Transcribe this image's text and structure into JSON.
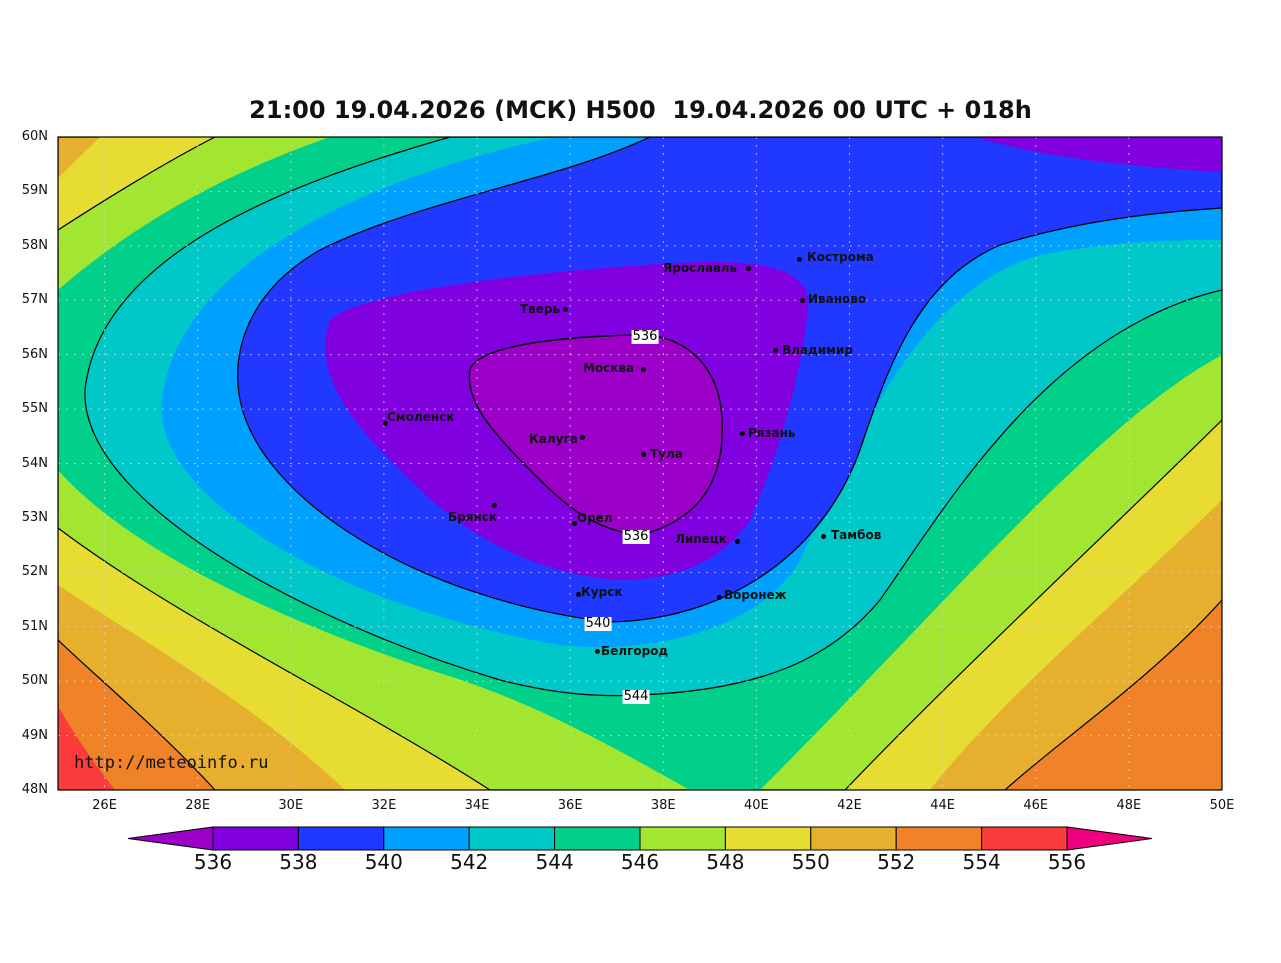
{
  "title": "21:00 19.04.2026 (МСК) H500  19.04.2026 00 UTC + 018h",
  "watermark": "http://meteoinfo.ru",
  "lat_labels": [
    "48N",
    "49N",
    "50N",
    "51N",
    "52N",
    "53N",
    "54N",
    "55N",
    "56N",
    "57N",
    "58N",
    "59N",
    "60N"
  ],
  "lon_labels": [
    "26E",
    "28E",
    "30E",
    "32E",
    "34E",
    "36E",
    "38E",
    "40E",
    "42E",
    "44E",
    "46E",
    "48E",
    "50E"
  ],
  "cities": [
    "Кострома",
    "Ярославль",
    "Иваново",
    "Тверь",
    "Владимир",
    "Москва",
    "Смоленск",
    "Калуга",
    "Рязань",
    "Тула",
    "Брянск",
    "Орел",
    "Липецк",
    "Тамбов",
    "Курск",
    "Воронеж",
    "Белгород"
  ],
  "contour_labels": [
    "536",
    "536",
    "540",
    "544"
  ],
  "colorbar": {
    "labels": [
      "536",
      "538",
      "540",
      "542",
      "544",
      "546",
      "548",
      "550",
      "552",
      "554",
      "556"
    ],
    "colors": {
      "below_536": "#9c00c8",
      "536_538": "#8000e0",
      "538_540": "#2038ff",
      "540_542": "#00a0ff",
      "542_544": "#00c8c8",
      "544_546": "#00d08a",
      "546_548": "#a2e632",
      "548_550": "#e6dc32",
      "550_552": "#e6af2d",
      "552_554": "#f08228",
      "554_556": "#fa3c3c",
      "above_556": "#f0007e"
    }
  }
}
